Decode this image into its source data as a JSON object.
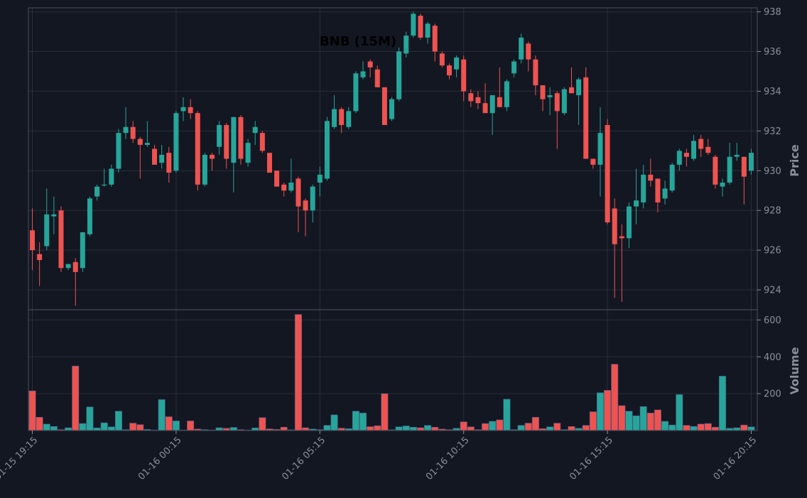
{
  "chart_data": {
    "type": "candlestick",
    "title": "BNB (15M)",
    "price_axis": {
      "label": "Price",
      "ylim": [
        923.0,
        938.2
      ],
      "ticks": [
        924,
        926,
        928,
        930,
        932,
        934,
        936,
        938
      ]
    },
    "volume_axis": {
      "label": "Volume",
      "ylim": [
        0,
        640
      ],
      "ticks": [
        200,
        400,
        600
      ]
    },
    "x_ticks": [
      "01-15 19:15",
      "01-16 00:15",
      "01-16 05:15",
      "01-16 10:15",
      "01-16 15:15",
      "01-16 20:15"
    ],
    "x_tick_indices": [
      0,
      20,
      40,
      60,
      80,
      100
    ],
    "grid": true,
    "colors": {
      "up": "#26a69a",
      "down": "#ef5350",
      "background": "#131722",
      "grid": "#2a2e39",
      "frame": "#434651"
    },
    "ohlc": [
      [
        927.0,
        928.1,
        925.0,
        926.0
      ],
      [
        925.8,
        926.4,
        924.2,
        925.5
      ],
      [
        926.2,
        929.1,
        926.0,
        927.8
      ],
      [
        927.7,
        928.7,
        926.8,
        927.8
      ],
      [
        928.0,
        928.2,
        924.9,
        925.1
      ],
      [
        925.1,
        925.3,
        925.0,
        925.3
      ],
      [
        925.4,
        925.6,
        923.2,
        924.9
      ],
      [
        925.1,
        926.9,
        924.9,
        926.9
      ],
      [
        926.8,
        928.7,
        926.7,
        928.6
      ],
      [
        928.7,
        929.3,
        928.5,
        929.2
      ],
      [
        929.3,
        930.1,
        929.2,
        929.3
      ],
      [
        929.3,
        930.3,
        929.2,
        930.1
      ],
      [
        930.1,
        932.1,
        929.9,
        931.9
      ],
      [
        931.9,
        933.2,
        931.6,
        932.2
      ],
      [
        932.2,
        932.5,
        931.4,
        931.6
      ],
      [
        931.6,
        931.7,
        929.6,
        931.3
      ],
      [
        931.3,
        932.5,
        931.2,
        931.4
      ],
      [
        931.1,
        931.3,
        930.3,
        930.3
      ],
      [
        930.4,
        931.3,
        930.1,
        930.8
      ],
      [
        930.9,
        931.2,
        929.4,
        929.9
      ],
      [
        930.0,
        933.0,
        929.9,
        932.9
      ],
      [
        933.0,
        933.7,
        932.5,
        933.2
      ],
      [
        933.2,
        933.6,
        932.6,
        932.9
      ],
      [
        932.9,
        933.0,
        929.0,
        929.3
      ],
      [
        929.3,
        930.9,
        929.2,
        930.8
      ],
      [
        930.8,
        930.9,
        930.0,
        930.6
      ],
      [
        931.2,
        932.5,
        930.8,
        932.3
      ],
      [
        932.3,
        932.4,
        930.1,
        930.6
      ],
      [
        930.4,
        932.7,
        928.9,
        932.7
      ],
      [
        932.7,
        932.8,
        930.3,
        930.6
      ],
      [
        930.4,
        931.6,
        930.2,
        931.4
      ],
      [
        931.9,
        932.5,
        931.3,
        932.2
      ],
      [
        931.9,
        932.0,
        930.9,
        931.0
      ],
      [
        930.9,
        930.9,
        929.9,
        929.9
      ],
      [
        930.0,
        930.0,
        929.2,
        929.2
      ],
      [
        929.3,
        929.4,
        928.7,
        929.0
      ],
      [
        929.0,
        930.6,
        928.9,
        929.4
      ],
      [
        929.6,
        929.7,
        926.9,
        928.2
      ],
      [
        928.5,
        928.6,
        926.7,
        928.0
      ],
      [
        928.0,
        929.3,
        927.4,
        929.2
      ],
      [
        929.4,
        930.2,
        928.7,
        929.8
      ],
      [
        929.6,
        932.7,
        929.5,
        932.5
      ],
      [
        932.2,
        933.8,
        932.1,
        933.1
      ],
      [
        933.1,
        933.2,
        931.9,
        932.3
      ],
      [
        932.2,
        933.2,
        932.1,
        933.0
      ],
      [
        933.0,
        935.0,
        932.9,
        934.9
      ],
      [
        934.7,
        935.5,
        934.6,
        935.0
      ],
      [
        935.5,
        935.6,
        934.7,
        935.2
      ],
      [
        935.1,
        935.3,
        934.2,
        934.2
      ],
      [
        934.2,
        934.2,
        932.3,
        932.3
      ],
      [
        932.6,
        933.7,
        932.5,
        933.6
      ],
      [
        933.6,
        936.2,
        933.5,
        936.0
      ],
      [
        935.9,
        937.0,
        935.7,
        936.8
      ],
      [
        936.8,
        938.0,
        936.7,
        937.9
      ],
      [
        937.8,
        937.9,
        936.6,
        936.7
      ],
      [
        936.7,
        937.5,
        936.4,
        937.4
      ],
      [
        937.3,
        937.4,
        935.5,
        936.0
      ],
      [
        935.9,
        936.0,
        935.2,
        935.3
      ],
      [
        935.3,
        935.4,
        934.6,
        934.8
      ],
      [
        935.1,
        935.8,
        934.7,
        935.7
      ],
      [
        935.6,
        935.8,
        933.5,
        934.0
      ],
      [
        933.9,
        934.1,
        933.2,
        933.5
      ],
      [
        933.7,
        934.0,
        933.1,
        933.4
      ],
      [
        933.4,
        934.4,
        933.0,
        932.9
      ],
      [
        932.9,
        933.8,
        931.8,
        933.8
      ],
      [
        933.7,
        935.2,
        933.2,
        933.2
      ],
      [
        933.2,
        934.6,
        933.0,
        934.5
      ],
      [
        934.9,
        935.6,
        934.7,
        935.5
      ],
      [
        935.6,
        936.9,
        935.4,
        936.7
      ],
      [
        936.4,
        936.5,
        935.0,
        935.6
      ],
      [
        935.6,
        935.8,
        933.8,
        934.3
      ],
      [
        934.3,
        934.3,
        933.0,
        933.6
      ],
      [
        933.7,
        934.2,
        932.8,
        933.8
      ],
      [
        933.9,
        934.0,
        931.1,
        933.0
      ],
      [
        932.9,
        934.2,
        932.8,
        934.1
      ],
      [
        934.2,
        935.2,
        933.9,
        933.9
      ],
      [
        933.8,
        934.7,
        932.3,
        934.6
      ],
      [
        934.7,
        935.2,
        930.6,
        930.6
      ],
      [
        930.6,
        930.6,
        930.1,
        930.3
      ],
      [
        930.3,
        933.2,
        928.7,
        931.9
      ],
      [
        932.3,
        932.6,
        927.3,
        927.4
      ],
      [
        928.1,
        928.6,
        923.6,
        926.3
      ],
      [
        926.7,
        927.3,
        923.4,
        926.6
      ],
      [
        926.6,
        928.4,
        926.1,
        928.2
      ],
      [
        928.2,
        930.1,
        927.3,
        928.5
      ],
      [
        928.4,
        930.3,
        928.1,
        929.8
      ],
      [
        929.8,
        930.6,
        929.2,
        929.5
      ],
      [
        929.6,
        929.6,
        927.9,
        928.4
      ],
      [
        928.6,
        929.5,
        928.3,
        929.1
      ],
      [
        929.0,
        930.4,
        928.9,
        930.3
      ],
      [
        930.3,
        931.1,
        930.0,
        931.0
      ],
      [
        930.9,
        931.1,
        930.2,
        930.7
      ],
      [
        930.6,
        931.8,
        930.5,
        931.5
      ],
      [
        931.6,
        931.8,
        930.7,
        931.1
      ],
      [
        931.2,
        931.6,
        930.8,
        930.9
      ],
      [
        930.7,
        930.8,
        929.1,
        929.3
      ],
      [
        929.2,
        929.6,
        928.7,
        929.4
      ],
      [
        929.4,
        931.4,
        929.3,
        930.7
      ],
      [
        930.7,
        931.4,
        930.5,
        930.8
      ],
      [
        930.7,
        930.7,
        928.3,
        929.7
      ],
      [
        930.0,
        931.1,
        929.8,
        930.9
      ]
    ],
    "volume": [
      215,
      72,
      35,
      22,
      5,
      15,
      350,
      38,
      128,
      14,
      42,
      20,
      105,
      5,
      40,
      32,
      6,
      3,
      168,
      75,
      52,
      3,
      52,
      8,
      5,
      3,
      15,
      12,
      17,
      5,
      3,
      14,
      70,
      9,
      6,
      18,
      4,
      630,
      15,
      8,
      5,
      28,
      85,
      13,
      10,
      105,
      95,
      21,
      26,
      200,
      4,
      20,
      25,
      18,
      15,
      28,
      18,
      8,
      5,
      12,
      47,
      20,
      5,
      38,
      50,
      58,
      170,
      5,
      28,
      40,
      72,
      10,
      20,
      40,
      5,
      22,
      12,
      28,
      102,
      205,
      218,
      360,
      135,
      105,
      80,
      130,
      95,
      112,
      50,
      30,
      195,
      28,
      22,
      35,
      38,
      18,
      295,
      12,
      15,
      30,
      20
    ]
  }
}
